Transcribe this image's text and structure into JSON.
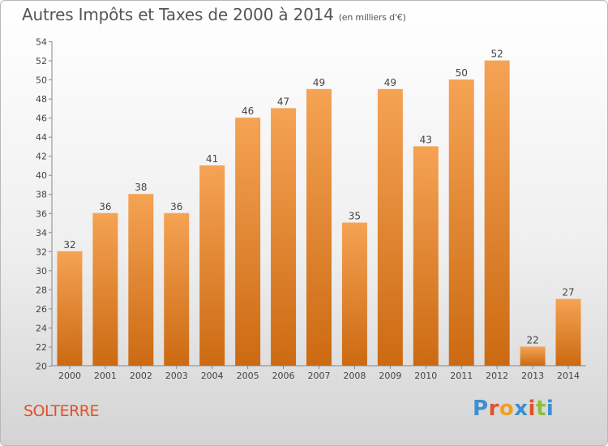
{
  "header": {
    "title": "Autres Impôts et Taxes de 2000 à 2014",
    "unit": "(en milliers d'€)"
  },
  "footer": {
    "commune": "SOLTERRE",
    "logo": [
      "P",
      "r",
      "o",
      "x",
      "i",
      "t",
      "i"
    ]
  },
  "colors": {
    "bar_light": "#f5a354",
    "bar_dark": "#cc6a12",
    "commune": "#e0522a",
    "logo": [
      "#3c8fd0",
      "#e0522a",
      "#f0a020",
      "#3c8fd0",
      "#e0522a",
      "#8cbf3c",
      "#3c8fd0"
    ]
  },
  "chart_data": {
    "type": "bar",
    "categories": [
      "2000",
      "2001",
      "2002",
      "2003",
      "2004",
      "2005",
      "2006",
      "2007",
      "2008",
      "2009",
      "2010",
      "2011",
      "2012",
      "2013",
      "2014"
    ],
    "values": [
      32,
      36,
      38,
      36,
      41,
      46,
      47,
      49,
      35,
      49,
      43,
      50,
      52,
      22,
      27
    ],
    "title": "Autres Impôts et Taxes de 2000 à 2014",
    "xlabel": "",
    "ylabel": "",
    "ylim": [
      20,
      54
    ],
    "yticks": [
      20,
      22,
      24,
      26,
      28,
      30,
      32,
      34,
      36,
      38,
      40,
      42,
      44,
      46,
      48,
      50,
      52,
      54
    ],
    "grid": false,
    "data_labels": true
  }
}
